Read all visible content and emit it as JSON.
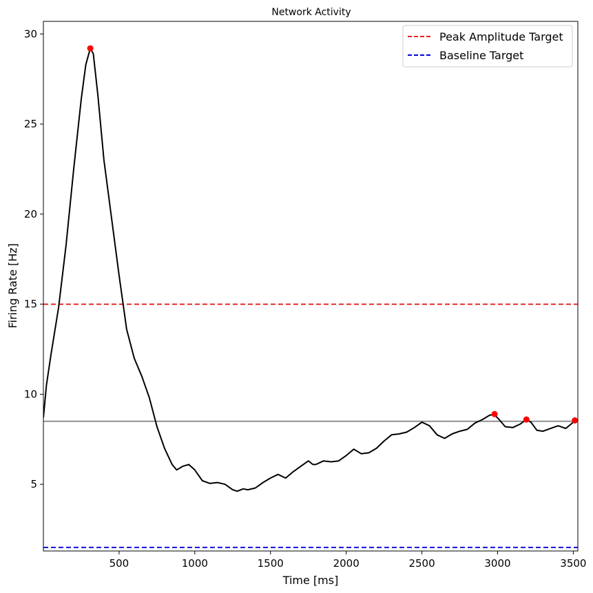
{
  "chart_data": {
    "type": "line",
    "title": "Network Activity",
    "xlabel": "Time [ms]",
    "ylabel": "Firing Rate [Hz]",
    "xlim": [
      0,
      3530
    ],
    "ylim": [
      1.3,
      30.7
    ],
    "xticks": [
      500,
      1000,
      1500,
      2000,
      2500,
      3000,
      3500
    ],
    "yticks": [
      5,
      10,
      15,
      20,
      25,
      30
    ],
    "grid": false,
    "legend_position": "top-right",
    "series": [
      {
        "color": "#000000",
        "style": "solid",
        "x": [
          0,
          20,
          50,
          100,
          150,
          200,
          250,
          280,
          310,
          330,
          360,
          400,
          450,
          500,
          550,
          600,
          620,
          650,
          700,
          750,
          800,
          850,
          880,
          920,
          960,
          1000,
          1050,
          1100,
          1150,
          1200,
          1250,
          1280,
          1320,
          1350,
          1400,
          1450,
          1500,
          1550,
          1600,
          1650,
          1700,
          1750,
          1780,
          1800,
          1850,
          1900,
          1950,
          2000,
          2050,
          2100,
          2150,
          2200,
          2250,
          2300,
          2350,
          2400,
          2450,
          2500,
          2550,
          2600,
          2650,
          2700,
          2750,
          2800,
          2850,
          2900,
          2950,
          2980,
          3010,
          3050,
          3100,
          3150,
          3190,
          3220,
          3260,
          3300,
          3350,
          3400,
          3450,
          3500,
          3530
        ],
        "y": [
          8.7,
          10.5,
          12.2,
          14.8,
          18.3,
          22.5,
          26.4,
          28.3,
          29.2,
          28.9,
          26.6,
          23.0,
          19.8,
          16.6,
          13.6,
          12.0,
          11.6,
          11.0,
          9.8,
          8.2,
          7.0,
          6.1,
          5.8,
          6.0,
          6.1,
          5.8,
          5.2,
          5.05,
          5.1,
          5.0,
          4.7,
          4.62,
          4.75,
          4.7,
          4.8,
          5.1,
          5.35,
          5.55,
          5.35,
          5.7,
          6.0,
          6.3,
          6.1,
          6.1,
          6.3,
          6.25,
          6.3,
          6.6,
          6.95,
          6.7,
          6.75,
          7.0,
          7.4,
          7.75,
          7.8,
          7.9,
          8.15,
          8.45,
          8.25,
          7.75,
          7.55,
          7.8,
          7.95,
          8.05,
          8.4,
          8.6,
          8.85,
          8.85,
          8.6,
          8.2,
          8.15,
          8.35,
          8.6,
          8.45,
          8.0,
          7.95,
          8.1,
          8.25,
          8.1,
          8.45,
          8.55
        ]
      },
      {
        "color": "#888888",
        "style": "solid",
        "x": [
          0,
          3530
        ],
        "y": [
          8.5,
          8.5
        ]
      },
      {
        "name": "Peak Amplitude Target",
        "color": "#e41a1c",
        "style": "dashed",
        "x": [
          0,
          3530
        ],
        "y": [
          15,
          15
        ]
      },
      {
        "name": "Baseline Target",
        "color": "#0000dd",
        "style": "dashed",
        "x": [
          0,
          3530
        ],
        "y": [
          1.5,
          1.5
        ]
      }
    ],
    "peaks": {
      "color": "#ff0000",
      "x": [
        310,
        2980,
        3190,
        3510
      ],
      "y": [
        29.2,
        8.9,
        8.6,
        8.55
      ]
    },
    "legend": [
      {
        "label": "Peak Amplitude Target",
        "color": "#e41a1c",
        "style": "dashed"
      },
      {
        "label": "Baseline Target",
        "color": "#0000dd",
        "style": "dashed"
      }
    ]
  }
}
